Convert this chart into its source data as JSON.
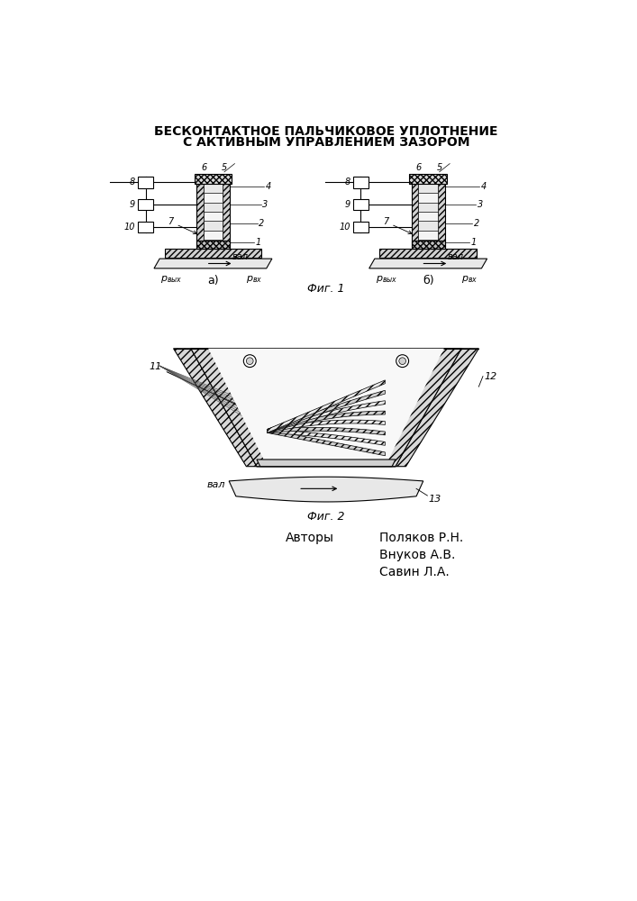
{
  "title_line1": "БЕСКОНТАКТНОЕ ПАЛЬЧИКОВОЕ УПЛОТНЕНИЕ",
  "title_line2": "С АКТИВНЫМ УПРАВЛЕНИЕМ ЗАЗОРОМ",
  "fig1_caption": "Фиг. 1",
  "fig2_caption": "Фиг. 2",
  "authors_label": "Авторы",
  "authors": [
    "Поляков Р.Н.",
    "Внуков А.В.",
    "Савин Л.А."
  ],
  "label_a": "а)",
  "label_b": "б)",
  "bg_color": "#ffffff",
  "line_color": "#000000"
}
